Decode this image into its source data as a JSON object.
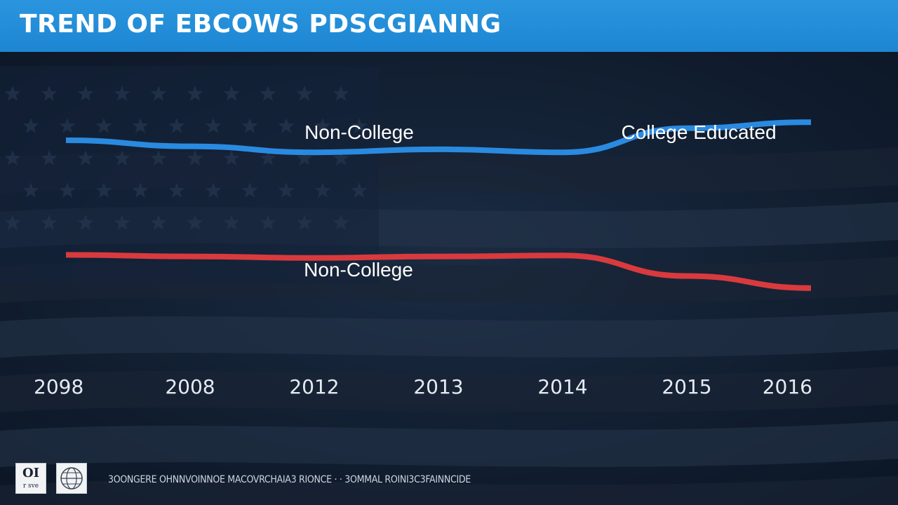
{
  "header": {
    "title": "TREND OF EBCOWS PDSCGIANNG"
  },
  "chart_data": {
    "type": "line",
    "categories": [
      "2098",
      "2008",
      "2012",
      "2013",
      "2014",
      "2015",
      "2016"
    ],
    "series": [
      {
        "name": "Non-College",
        "color": "#2a8ae0",
        "values": [
          80,
          78,
          76,
          77,
          76,
          84,
          86
        ]
      },
      {
        "name": "Non-College",
        "color": "#d93a3e",
        "values": [
          42,
          41.5,
          41,
          41.5,
          41.8,
          35,
          31
        ]
      }
    ],
    "annotations": [
      "Non-College",
      "College Educated",
      "Non-College"
    ],
    "ylim": [
      0,
      100
    ],
    "grid": false,
    "legend": "none"
  },
  "footer": {
    "logo_left": {
      "text": "OI",
      "subtext": "r sve"
    },
    "text": "3OONGERE OHNNVOINNOE MACOVRCHAIA3 RIONCE · · 3OMMAL ROINI3C3FAINNCIDE"
  }
}
